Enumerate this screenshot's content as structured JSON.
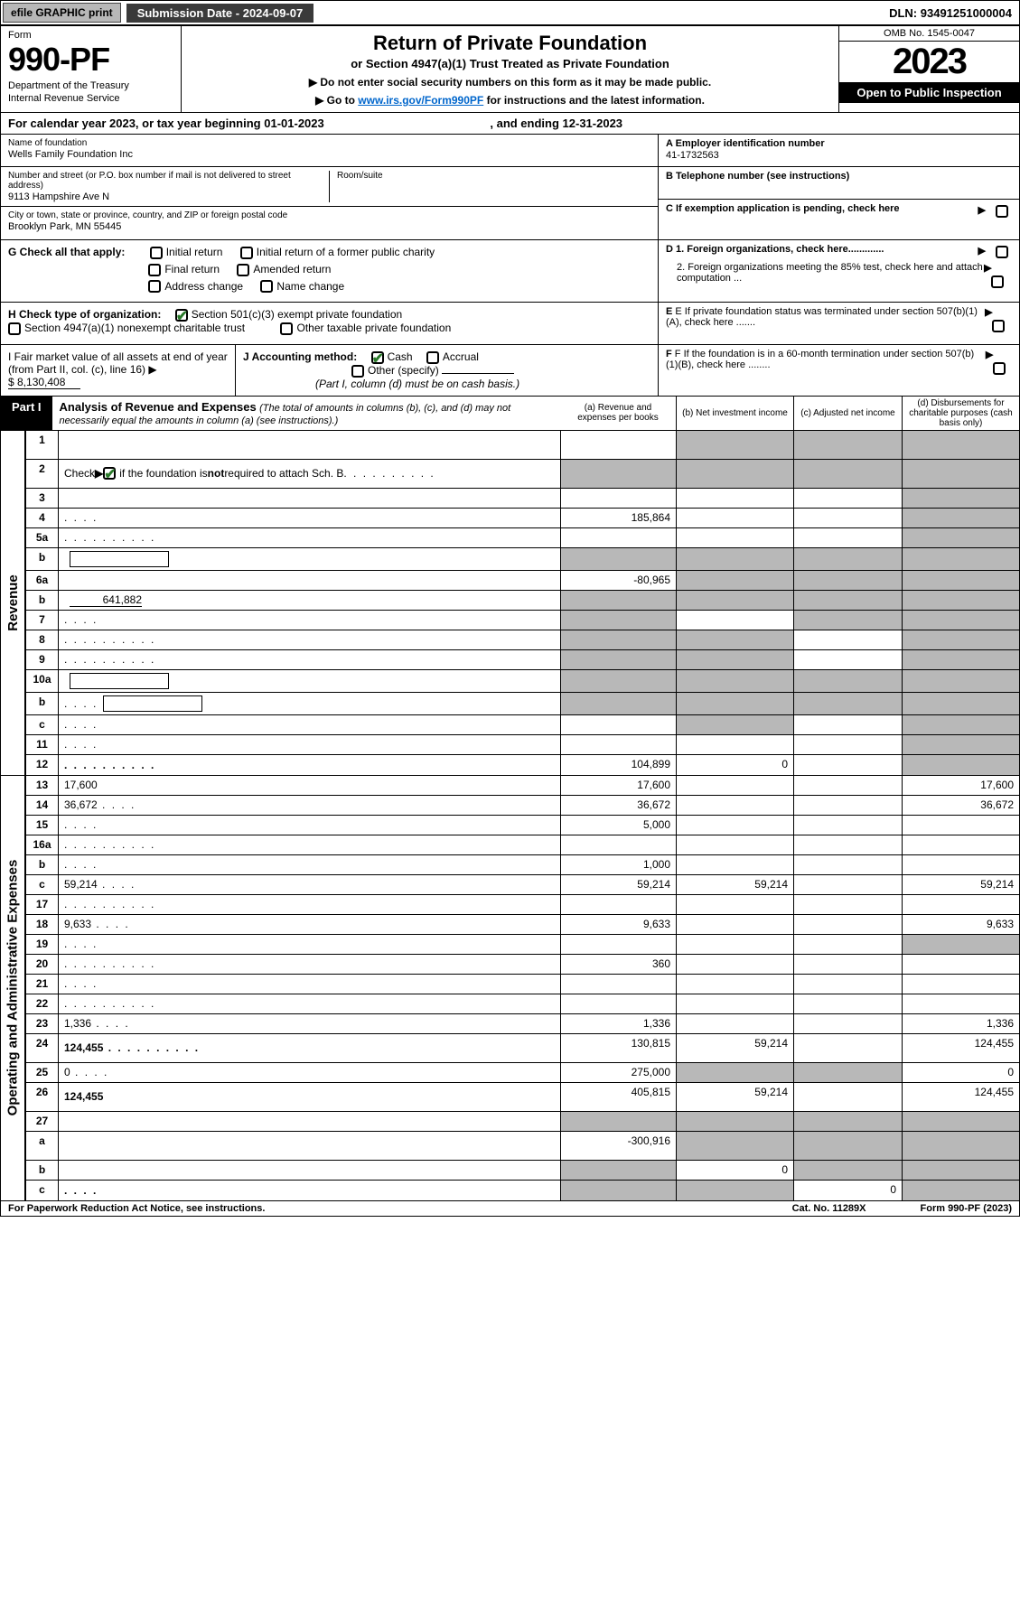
{
  "topbar": {
    "efile": "efile GRAPHIC print",
    "subdate_label": "Submission Date - ",
    "subdate": "2024-09-07",
    "dln_label": "DLN: ",
    "dln": "93491251000004"
  },
  "header": {
    "form_label": "Form",
    "form_num": "990-PF",
    "dept1": "Department of the Treasury",
    "dept2": "Internal Revenue Service",
    "title": "Return of Private Foundation",
    "subtitle": "or Section 4947(a)(1) Trust Treated as Private Foundation",
    "note1_pre": "▶ Do not enter social security numbers on this form as it may be made public.",
    "note2_pre": "▶ Go to ",
    "note2_link": "www.irs.gov/Form990PF",
    "note2_post": " for instructions and the latest information.",
    "omb": "OMB No. 1545-0047",
    "year": "2023",
    "open": "Open to Public Inspection"
  },
  "calyear": {
    "text_pre": "For calendar year 2023, or tax year beginning ",
    "begin": "01-01-2023",
    "text_mid": " , and ending ",
    "end": "12-31-2023"
  },
  "info": {
    "name_label": "Name of foundation",
    "name": "Wells Family Foundation Inc",
    "ein_label": "A Employer identification number",
    "ein": "41-1732563",
    "addr_label": "Number and street (or P.O. box number if mail is not delivered to street address)",
    "addr": "9113 Hampshire Ave N",
    "room_label": "Room/suite",
    "room": "",
    "tel_label": "B Telephone number (see instructions)",
    "tel": "",
    "city_label": "City or town, state or province, country, and ZIP or foreign postal code",
    "city": "Brooklyn Park, MN  55445",
    "c_label": "C If exemption application is pending, check here",
    "g_label": "G Check all that apply:",
    "g_opts": [
      "Initial return",
      "Final return",
      "Address change",
      "Initial return of a former public charity",
      "Amended return",
      "Name change"
    ],
    "d1": "D 1. Foreign organizations, check here.............",
    "d2": "2. Foreign organizations meeting the 85% test, check here and attach computation ...",
    "h_label": "H Check type of organization:",
    "h1": "Section 501(c)(3) exempt private foundation",
    "h2": "Section 4947(a)(1) nonexempt charitable trust",
    "h3": "Other taxable private foundation",
    "e_label": "E If private foundation status was terminated under section 507(b)(1)(A), check here .......",
    "i_label": "I Fair market value of all assets at end of year (from Part II, col. (c), line 16) ▶",
    "i_val": "$  8,130,408",
    "j_label": "J Accounting method:",
    "j_cash": "Cash",
    "j_acc": "Accrual",
    "j_other": "Other (specify)",
    "j_note": "(Part I, column (d) must be on cash basis.)",
    "f_label": "F If the foundation is in a 60-month termination under section 507(b)(1)(B), check here ........"
  },
  "part1": {
    "label": "Part I",
    "title": "Analysis of Revenue and Expenses",
    "note": "(The total of amounts in columns (b), (c), and (d) may not necessarily equal the amounts in column (a) (see instructions).)",
    "col_a": "(a)  Revenue and expenses per books",
    "col_b": "(b)  Net investment income",
    "col_c": "(c)  Adjusted net income",
    "col_d": "(d)  Disbursements for charitable purposes (cash basis only)"
  },
  "sides": {
    "rev": "Revenue",
    "oae": "Operating and Administrative Expenses"
  },
  "rows": [
    {
      "n": "1",
      "d": "",
      "a": "",
      "b": "",
      "c": "",
      "ga": false,
      "gb": true,
      "gc": true,
      "gd": true,
      "tall": true
    },
    {
      "n": "2",
      "d": "",
      "a": "",
      "b": "",
      "c": "",
      "ga": true,
      "gb": true,
      "gc": true,
      "gd": true,
      "tall": true,
      "checked": true,
      "dots": true
    },
    {
      "n": "3",
      "d": "",
      "a": "",
      "b": "",
      "c": "",
      "ga": false,
      "gb": false,
      "gc": false,
      "gd": true
    },
    {
      "n": "4",
      "d": "",
      "a": "185,864",
      "b": "",
      "c": "",
      "ga": false,
      "gb": false,
      "gc": false,
      "gd": true,
      "dots_s": true
    },
    {
      "n": "5a",
      "d": "",
      "a": "",
      "b": "",
      "c": "",
      "ga": false,
      "gb": false,
      "gc": false,
      "gd": true,
      "dots": true
    },
    {
      "n": "b",
      "d": "",
      "a": "",
      "b": "",
      "c": "",
      "ga": true,
      "gb": true,
      "gc": true,
      "gd": true,
      "inline": true
    },
    {
      "n": "6a",
      "d": "",
      "a": "-80,965",
      "b": "",
      "c": "",
      "ga": false,
      "gb": true,
      "gc": true,
      "gd": true
    },
    {
      "n": "b",
      "d": "",
      "a": "",
      "b": "",
      "c": "",
      "ga": true,
      "gb": true,
      "gc": true,
      "gd": true,
      "inline_val": "641,882"
    },
    {
      "n": "7",
      "d": "",
      "a": "",
      "b": "",
      "c": "",
      "ga": true,
      "gb": false,
      "gc": true,
      "gd": true,
      "dots_s": true
    },
    {
      "n": "8",
      "d": "",
      "a": "",
      "b": "",
      "c": "",
      "ga": true,
      "gb": true,
      "gc": false,
      "gd": true,
      "dots": true
    },
    {
      "n": "9",
      "d": "",
      "a": "",
      "b": "",
      "c": "",
      "ga": true,
      "gb": true,
      "gc": false,
      "gd": true,
      "dots": true
    },
    {
      "n": "10a",
      "d": "",
      "a": "",
      "b": "",
      "c": "",
      "ga": true,
      "gb": true,
      "gc": true,
      "gd": true,
      "inline": true
    },
    {
      "n": "b",
      "d": "",
      "a": "",
      "b": "",
      "c": "",
      "ga": true,
      "gb": true,
      "gc": true,
      "gd": true,
      "dots_s": true,
      "inline": true
    },
    {
      "n": "c",
      "d": "",
      "a": "",
      "b": "",
      "c": "",
      "ga": false,
      "gb": true,
      "gc": false,
      "gd": true,
      "dots_s": true
    },
    {
      "n": "11",
      "d": "",
      "a": "",
      "b": "",
      "c": "",
      "ga": false,
      "gb": false,
      "gc": false,
      "gd": true,
      "dots_s": true
    },
    {
      "n": "12",
      "d": "",
      "a": "104,899",
      "b": "0",
      "c": "",
      "ga": false,
      "gb": false,
      "gc": false,
      "gd": true,
      "bold": true,
      "dots": true
    }
  ],
  "rows_oae": [
    {
      "n": "13",
      "d": "17,600",
      "a": "17,600",
      "b": "",
      "c": ""
    },
    {
      "n": "14",
      "d": "36,672",
      "a": "36,672",
      "b": "",
      "c": "",
      "dots_s": true
    },
    {
      "n": "15",
      "d": "",
      "a": "5,000",
      "b": "",
      "c": "",
      "dots_s": true
    },
    {
      "n": "16a",
      "d": "",
      "a": "",
      "b": "",
      "c": "",
      "dots": true
    },
    {
      "n": "b",
      "d": "",
      "a": "1,000",
      "b": "",
      "c": "",
      "dots_s": true
    },
    {
      "n": "c",
      "d": "59,214",
      "a": "59,214",
      "b": "59,214",
      "c": "",
      "dots_s": true
    },
    {
      "n": "17",
      "d": "",
      "a": "",
      "b": "",
      "c": "",
      "dots": true
    },
    {
      "n": "18",
      "d": "9,633",
      "a": "9,633",
      "b": "",
      "c": "",
      "dots_s": true
    },
    {
      "n": "19",
      "d": "",
      "a": "",
      "b": "",
      "c": "",
      "gd": true,
      "dots_s": true
    },
    {
      "n": "20",
      "d": "",
      "a": "360",
      "b": "",
      "c": "",
      "dots": true
    },
    {
      "n": "21",
      "d": "",
      "a": "",
      "b": "",
      "c": "",
      "dots_s": true
    },
    {
      "n": "22",
      "d": "",
      "a": "",
      "b": "",
      "c": "",
      "dots": true
    },
    {
      "n": "23",
      "d": "1,336",
      "a": "1,336",
      "b": "",
      "c": "",
      "dots_s": true
    },
    {
      "n": "24",
      "d": "124,455",
      "a": "130,815",
      "b": "59,214",
      "c": "",
      "bold": true,
      "tall": true,
      "dots": true
    },
    {
      "n": "25",
      "d": "0",
      "a": "275,000",
      "b": "",
      "c": "",
      "gb": true,
      "gc": true,
      "dots_s": true
    },
    {
      "n": "26",
      "d": "124,455",
      "a": "405,815",
      "b": "59,214",
      "c": "",
      "bold": true,
      "tall": true
    },
    {
      "n": "27",
      "d": "",
      "a": "",
      "b": "",
      "c": "",
      "ga": true,
      "gb": true,
      "gc": true,
      "gd": true
    },
    {
      "n": "a",
      "d": "",
      "a": "-300,916",
      "b": "",
      "c": "",
      "bold": true,
      "gb": true,
      "gc": true,
      "gd": true,
      "tall": true
    },
    {
      "n": "b",
      "d": "",
      "a": "",
      "b": "0",
      "c": "",
      "bold": true,
      "ga": true,
      "gc": true,
      "gd": true
    },
    {
      "n": "c",
      "d": "",
      "a": "",
      "b": "",
      "c": "0",
      "bold": true,
      "ga": true,
      "gb": true,
      "gd": true,
      "dots_s": true
    }
  ],
  "footer": {
    "left": "For Paperwork Reduction Act Notice, see instructions.",
    "mid": "Cat. No. 11289X",
    "right": "Form 990-PF (2023)"
  },
  "colors": {
    "gray": "#b8b8b8",
    "black": "#000000",
    "link": "#0066cc",
    "check": "#2a7a2a"
  }
}
